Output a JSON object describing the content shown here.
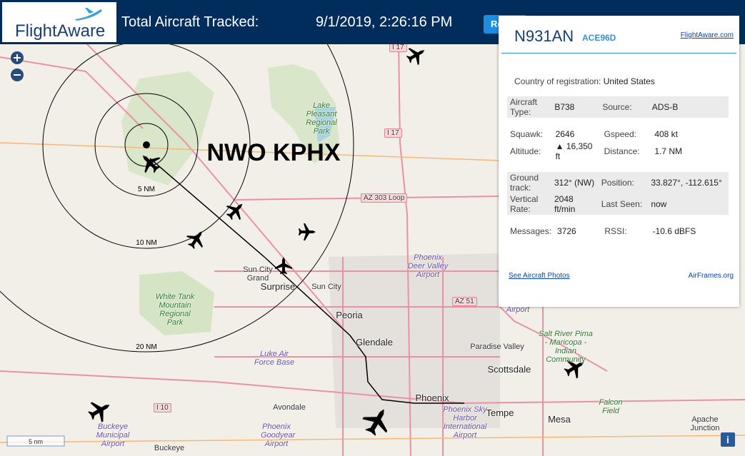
{
  "header": {
    "logo": "FlightAware",
    "total_label": "Total Aircraft Tracked:",
    "timestamp": "9/1/2019, 2:26:16 PM",
    "button": "Re"
  },
  "map": {
    "overlay_label": "NWO KPHX",
    "ring_labels": [
      "5 NM",
      "10 NM",
      "20 NM"
    ],
    "scale": "5 nm",
    "places": [
      "I 17",
      "Lake Pleasant Regional Park",
      "I 17",
      "AZ 303 Loop",
      "Sun City Grand",
      "Surprise",
      "Sun City",
      "Peoria",
      "Glendale",
      "Phoenix Deer Valley Airport",
      "AZ 51",
      "White Tank Mountain Regional Park",
      "Luke Air Force Base",
      "Paradise Valley",
      "Scottsdale",
      "Salt River Pima - Maricopa - Indian Community",
      "Phoenix",
      "Tempe",
      "Mesa",
      "Falcon Field",
      "Apache Junction",
      "Avondale",
      "I 10",
      "Buckeye Municipal Airport",
      "Phoenix Goodyear Airport",
      "Phoenix Sky Harbor International Airport",
      "Buckeye",
      "Airport"
    ]
  },
  "panel": {
    "registration": "N931AN",
    "hex": "ACE96D",
    "link": "FlightAware.com",
    "country_label": "Country of registration:",
    "country": "United States",
    "sections": [
      [
        [
          "Aircraft Type:",
          "B738",
          "Source:",
          "ADS-B"
        ]
      ],
      [
        [
          "Squawk:",
          "2646",
          "Gspeed:",
          "408 kt"
        ],
        [
          "Altitude:",
          "▲ 16,350 ft",
          "Distance:",
          "1.7 NM"
        ]
      ],
      [
        [
          "Ground track:",
          "312° (NW)",
          "Position:",
          "33.827°, -112.615°"
        ],
        [
          "Vertical Rate:",
          "2048 ft/min",
          "Last Seen:",
          "now"
        ]
      ],
      [
        [
          "Messages:",
          "3726",
          "RSSI:",
          "-10.6 dBFS"
        ]
      ]
    ],
    "photos_link": "See Aircraft Photos",
    "airframes": "AirFrames.org"
  }
}
